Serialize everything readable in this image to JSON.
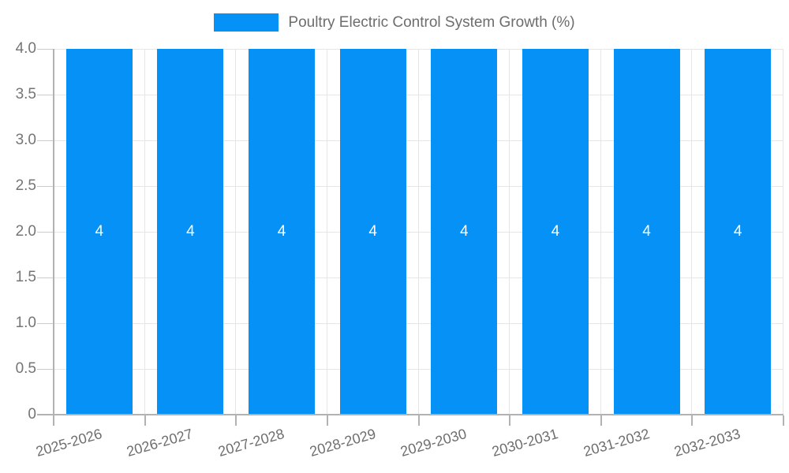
{
  "chart_data": {
    "type": "bar",
    "title": "Poultry Electric Control System Growth (%)",
    "legend": {
      "position": "top",
      "items": [
        {
          "label": "Poultry Electric Control System Growth (%)",
          "color": "#0591F5"
        }
      ]
    },
    "categories": [
      "2025-2026",
      "2026-2027",
      "2027-2028",
      "2028-2029",
      "2029-2030",
      "2030-2031",
      "2031-2032",
      "2032-2033"
    ],
    "series": [
      {
        "name": "Poultry Electric Control System Growth (%)",
        "values": [
          4,
          4,
          4,
          4,
          4,
          4,
          4,
          4
        ]
      }
    ],
    "data_labels": [
      "4",
      "4",
      "4",
      "4",
      "4",
      "4",
      "4",
      "4"
    ],
    "xlabel": "",
    "ylabel": "",
    "ylim": [
      0,
      4
    ],
    "ytick_values": [
      0,
      0.5,
      1,
      1.5,
      2,
      2.5,
      3,
      3.5,
      4
    ],
    "ytick_labels": [
      "0",
      "0.5",
      "1.0",
      "1.5",
      "2.0",
      "2.5",
      "3.0",
      "3.5",
      "4.0"
    ],
    "grid": true
  },
  "colors": {
    "bar": "#0591F5",
    "bar_label": "#ffffff",
    "gridline": "#e6e6e6",
    "axis_line": "#b2b2b2",
    "tick_stub": "#cccccc",
    "ytick_text": "#757575",
    "xtick_text": "#6e6e6e",
    "legend_text": "#6d6d6d",
    "background": "#ffffff"
  }
}
